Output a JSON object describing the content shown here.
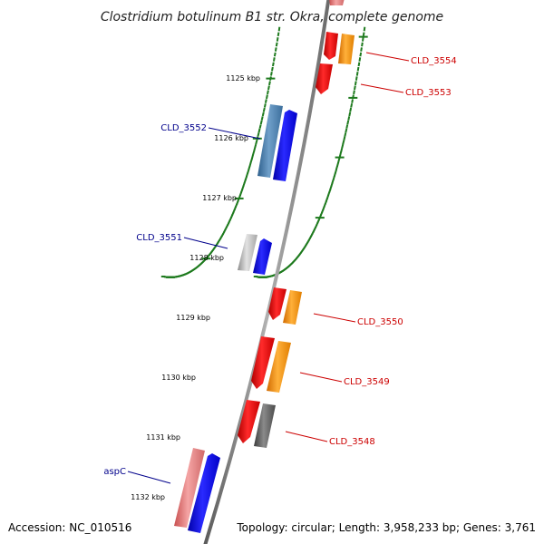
{
  "title": "Clostridium botulinum B1 str. Okra, complete genome",
  "footer": {
    "accession": "Accession: NC_010516",
    "summary": "Topology: circular; Length: 3,958,233 bp; Genes: 3,761"
  },
  "colors": {
    "backbone": "#8a8a8a",
    "tick": "#1e7a1e",
    "forward_label": "#00008b",
    "reverse_label": "#cc0000"
  },
  "ticks": [
    {
      "label": "1125 kbp"
    },
    {
      "label": "1126 kbp"
    },
    {
      "label": "1127 kbp"
    },
    {
      "label": "1128 kbp"
    },
    {
      "label": "1129 kbp"
    },
    {
      "label": "1130 kbp"
    },
    {
      "label": "1131 kbp"
    },
    {
      "label": "1132 kbp"
    }
  ],
  "labels": [
    {
      "text": "CLD_3554"
    },
    {
      "text": "CLD_3553"
    },
    {
      "text": "CLD_3552"
    },
    {
      "text": "CLD_3551"
    },
    {
      "text": "CLD_3550"
    },
    {
      "text": "CLD_3549"
    },
    {
      "text": "CLD_3548"
    },
    {
      "text": "aspC"
    }
  ]
}
